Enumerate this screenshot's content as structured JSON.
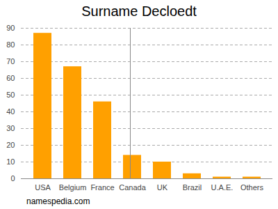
{
  "chart_data": {
    "type": "bar",
    "title": "Surname Decloedt",
    "caption": "namespedia.com",
    "categories": [
      "USA",
      "Belgium",
      "France",
      "Canada",
      "UK",
      "Brazil",
      "U.A.E.",
      "Others"
    ],
    "values": [
      87,
      67,
      46,
      14,
      10,
      3,
      1,
      1
    ],
    "color": "#ffa000",
    "ylim": [
      0,
      90
    ],
    "yticks": [
      0,
      10,
      20,
      30,
      40,
      50,
      60,
      70,
      80,
      90
    ],
    "grid": true
  }
}
